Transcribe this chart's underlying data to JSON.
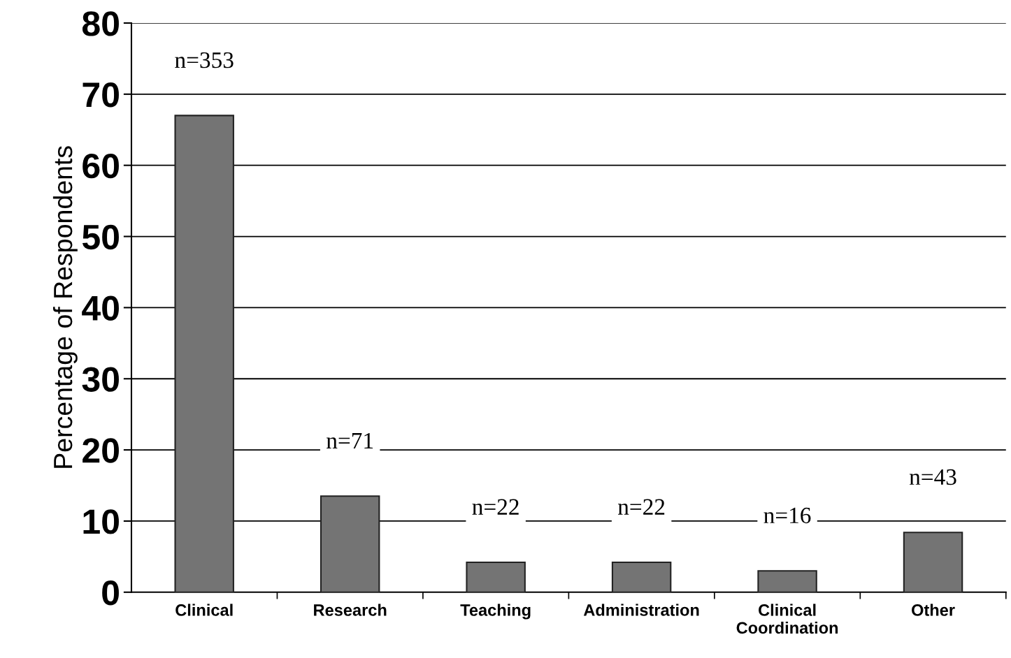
{
  "chart_data": {
    "type": "bar",
    "ylabel": "Percentage of Respondents",
    "categories": [
      "Clinical",
      "Research",
      "Teaching",
      "Administration",
      "Clinical\nCoordination",
      "Other"
    ],
    "values": [
      67,
      13.5,
      4.2,
      4.2,
      3.0,
      8.4
    ],
    "color": "#747474",
    "ylim": [
      0,
      80
    ],
    "yticks": [
      0,
      10,
      20,
      30,
      40,
      50,
      60,
      70,
      80
    ],
    "grid": "y",
    "legend": false,
    "annotations": [
      "n=353",
      "n=71",
      "n=22",
      "n=22",
      "n=16",
      "n=43"
    ]
  }
}
